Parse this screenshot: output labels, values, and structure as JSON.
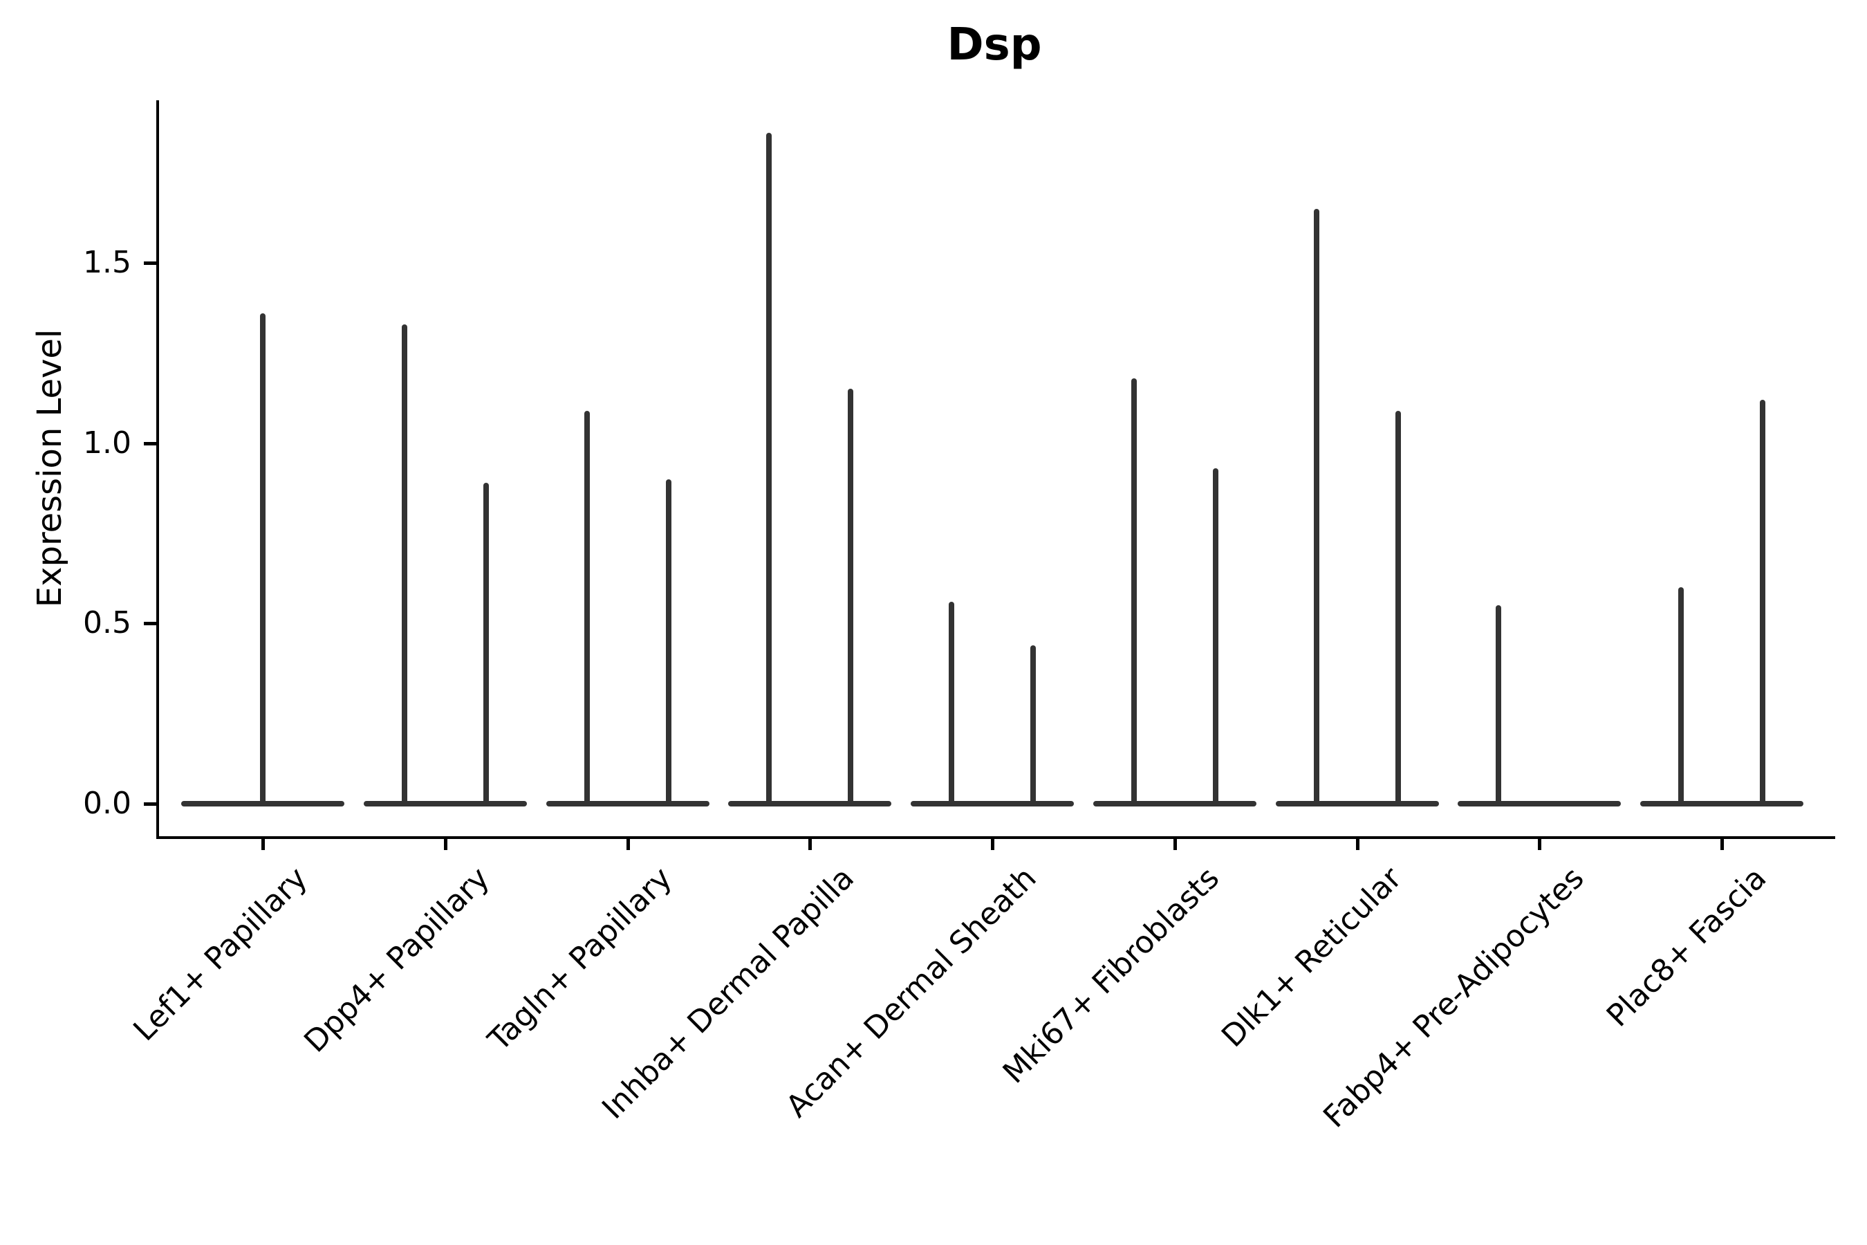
{
  "chart_data": {
    "type": "violin",
    "title": "Dsp",
    "xlabel": "",
    "ylabel": "Expression Level",
    "ylim": [
      -0.09,
      1.95
    ],
    "grid": false,
    "legend": "none",
    "colors": {
      "violin_outline": "#333333",
      "axis": "#000000",
      "background": "#ffffff"
    },
    "yticks": [
      {
        "label": "0.0",
        "value": 0.0
      },
      {
        "label": "0.5",
        "value": 0.5
      },
      {
        "label": "1.0",
        "value": 1.0
      },
      {
        "label": "1.5",
        "value": 1.5
      }
    ],
    "categories": [
      {
        "label": "Lef1+ Papillary",
        "spikes": [
          {
            "pos": "center",
            "value": 1.36
          }
        ]
      },
      {
        "label": "Dpp4+ Papillary",
        "spikes": [
          {
            "pos": "left",
            "value": 1.33
          },
          {
            "pos": "right",
            "value": 0.89
          }
        ]
      },
      {
        "label": "Tagln+ Papillary",
        "spikes": [
          {
            "pos": "left",
            "value": 1.09
          },
          {
            "pos": "right",
            "value": 0.9
          }
        ]
      },
      {
        "label": "Inhba+ Dermal Papilla",
        "spikes": [
          {
            "pos": "left",
            "value": 1.86
          },
          {
            "pos": "right",
            "value": 1.15
          }
        ]
      },
      {
        "label": "Acan+ Dermal Sheath",
        "spikes": [
          {
            "pos": "left",
            "value": 0.56
          },
          {
            "pos": "right",
            "value": 0.44
          }
        ]
      },
      {
        "label": "Mki67+ Fibroblasts",
        "spikes": [
          {
            "pos": "left",
            "value": 1.18
          },
          {
            "pos": "right",
            "value": 0.93
          }
        ]
      },
      {
        "label": "Dlk1+ Reticular",
        "spikes": [
          {
            "pos": "left",
            "value": 1.65
          },
          {
            "pos": "right",
            "value": 1.09
          }
        ]
      },
      {
        "label": "Fabp4+ Pre-Adipocytes",
        "spikes": [
          {
            "pos": "left",
            "value": 0.55
          }
        ]
      },
      {
        "label": "Plac8+ Fascia",
        "spikes": [
          {
            "pos": "left",
            "value": 0.6
          },
          {
            "pos": "right",
            "value": 1.12
          }
        ]
      }
    ]
  }
}
